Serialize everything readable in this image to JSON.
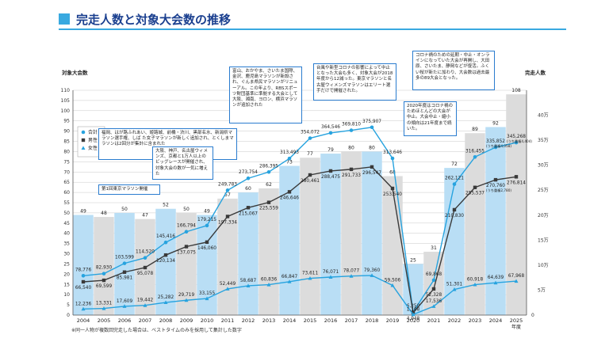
{
  "page": {
    "title": "完走人数と対象大会数の推移",
    "footnote": "※同一人物が複数回完走した場合は、ベストタイムのみを採用して集計した数字"
  },
  "annotations": [
    "第1回東京マラソン開催",
    "福岡、はが路ふれあい、姫路城、前橋・渋川、黒部名水、新潟県マラソン選手権、しば た女子マラソンが新しく追加され、とくしまマラソンは2回分が集計に含まれた",
    "大阪、神戸、名古屋ウィメンズ、京都と1万人以上のビッグレースが開催され、対象大会の数が一気に増えた",
    "富山、おかやま、さいたま国際、金沢、鹿児島マラソンが新設され、ぐんま県民マラソンがリニューアル。この年より、RBSスポーツ財団基準に準拠する大会として大阪、湘南、ヨロン、横浜マラソンが追加された",
    "台風や新型コロナの影響によって中止となった大会も多く、対象大会が2018年度から12減った。東京マラソンと名古屋ウィメンズマラソンはエリート選手だけで開催された。",
    "2020年度はコロナ禍のためほとんどの大会が中止。大会中止・縮小の傾向は21年度まで続いた。",
    "コロナ禍のための延期・中止・オンラインになっていた大会が再開し、大田原、さいたま、静岡などが復活。ふくい桜が新たに加わり、大会数は過去最多の89大会となった。"
  ],
  "chart_data": {
    "type": "bar",
    "categories": [
      "2004",
      "2005",
      "2006",
      "2007",
      "2008",
      "2009",
      "2010",
      "2011",
      "2012",
      "2013",
      "2014",
      "2015",
      "2016",
      "2017",
      "2018",
      "2019",
      "2020",
      "2021",
      "2022",
      "2023",
      "2024",
      "2025"
    ],
    "x_suffix": "年度",
    "ylabel": "対象大会数",
    "ylabel_right": "完走人数",
    "ylim": [
      0,
      110
    ],
    "ylim_right": [
      0,
      450000
    ],
    "yticks_left": [
      0,
      5,
      10,
      15,
      20,
      25,
      30,
      35,
      40,
      45,
      50,
      55,
      60,
      65,
      70,
      75,
      80,
      85,
      90,
      95,
      100,
      105,
      110
    ],
    "yticks_right": [
      "5万",
      "10万",
      "15万",
      "20万",
      "25万",
      "30万",
      "35万",
      "40万"
    ],
    "bars": {
      "name": "対象大会数",
      "values": [
        49,
        48,
        50,
        47,
        52,
        50,
        49,
        57,
        60,
        62,
        73,
        77,
        79,
        80,
        80,
        68,
        25,
        31,
        72,
        89,
        92,
        108
      ],
      "colors": [
        "#b9def5",
        "#dcdcdc"
      ]
    },
    "series": [
      {
        "name": "合計",
        "color": "#27a3df",
        "marker": "circle",
        "values": [
          78776,
          82930,
          103599,
          114520,
          145416,
          166794,
          179215,
          249783,
          273754,
          286395,
          313493,
          354072,
          364546,
          369810,
          375907,
          313646,
          6250,
          69868,
          262121,
          316455,
          335852,
          345268
        ],
        "labels": [
          "78,776",
          "82,930",
          "103,599",
          "114,520",
          "145,416",
          "166,794",
          "179,215",
          "249,783",
          "273,754",
          "286,395",
          "313,493",
          "354,072",
          "364,546",
          "369,810",
          "375,907",
          "313,646",
          "6,250",
          "69,868",
          "262,121",
          "316,455",
          "335,852",
          "345,268"
        ],
        "sub_labels": [
          "",
          "",
          "",
          "",
          "",
          "",
          "",
          "",
          "",
          "",
          "",
          "",
          "",
          "",
          "",
          "",
          "",
          "",
          "",
          "",
          "(うち重複4,058)",
          "(うち重複4,404)"
        ]
      },
      {
        "name": "男性",
        "color": "#3a3a3a",
        "marker": "square",
        "values": [
          66540,
          69599,
          85981,
          95078,
          120134,
          137075,
          146060,
          197334,
          215067,
          225559,
          246646,
          280461,
          288475,
          291733,
          296547,
          253540,
          4948,
          52328,
          210830,
          255537,
          270760,
          276814
        ],
        "labels": [
          "66,540",
          "69,599",
          "85,981",
          "95,078",
          "120,134",
          "137,075",
          "146,060",
          "197,334",
          "215,067",
          "225,559",
          "246,646",
          "280,461",
          "288,475",
          "291,733",
          "296,547",
          "253,540",
          "4,948",
          "52,328",
          "210,830",
          "255,537",
          "270,760",
          "276,814"
        ],
        "sub_labels": [
          "",
          "",
          "",
          "",
          "",
          "",
          "",
          "",
          "",
          "",
          "",
          "",
          "",
          "",
          "",
          "",
          "",
          "",
          "",
          "",
          "(うち重複2,780)",
          ""
        ]
      },
      {
        "name": "女性",
        "color": "#27a3df",
        "marker": "triangle",
        "values": [
          12236,
          13331,
          17609,
          19442,
          25282,
          29719,
          33155,
          52449,
          58687,
          60836,
          66847,
          73611,
          76071,
          78077,
          79360,
          59506,
          1168,
          17536,
          51301,
          60918,
          64639,
          67968
        ],
        "labels": [
          "12,236",
          "13,331",
          "17,609",
          "19,442",
          "25,282",
          "29,719",
          "33,155",
          "52,449",
          "58,687",
          "60,836",
          "66,847",
          "73,611",
          "76,071",
          "78,077",
          "79,360",
          "59,506",
          "1,168",
          "17,536",
          "51,301",
          "60,918",
          "64,639",
          "67,968"
        ],
        "sub_labels": [
          "",
          "",
          "",
          "",
          "",
          "",
          "",
          "",
          "",
          "",
          "",
          "",
          "",
          "",
          "",
          "",
          "",
          "",
          "",
          "",
          "",
          ""
        ]
      }
    ],
    "legend_position": "left"
  }
}
